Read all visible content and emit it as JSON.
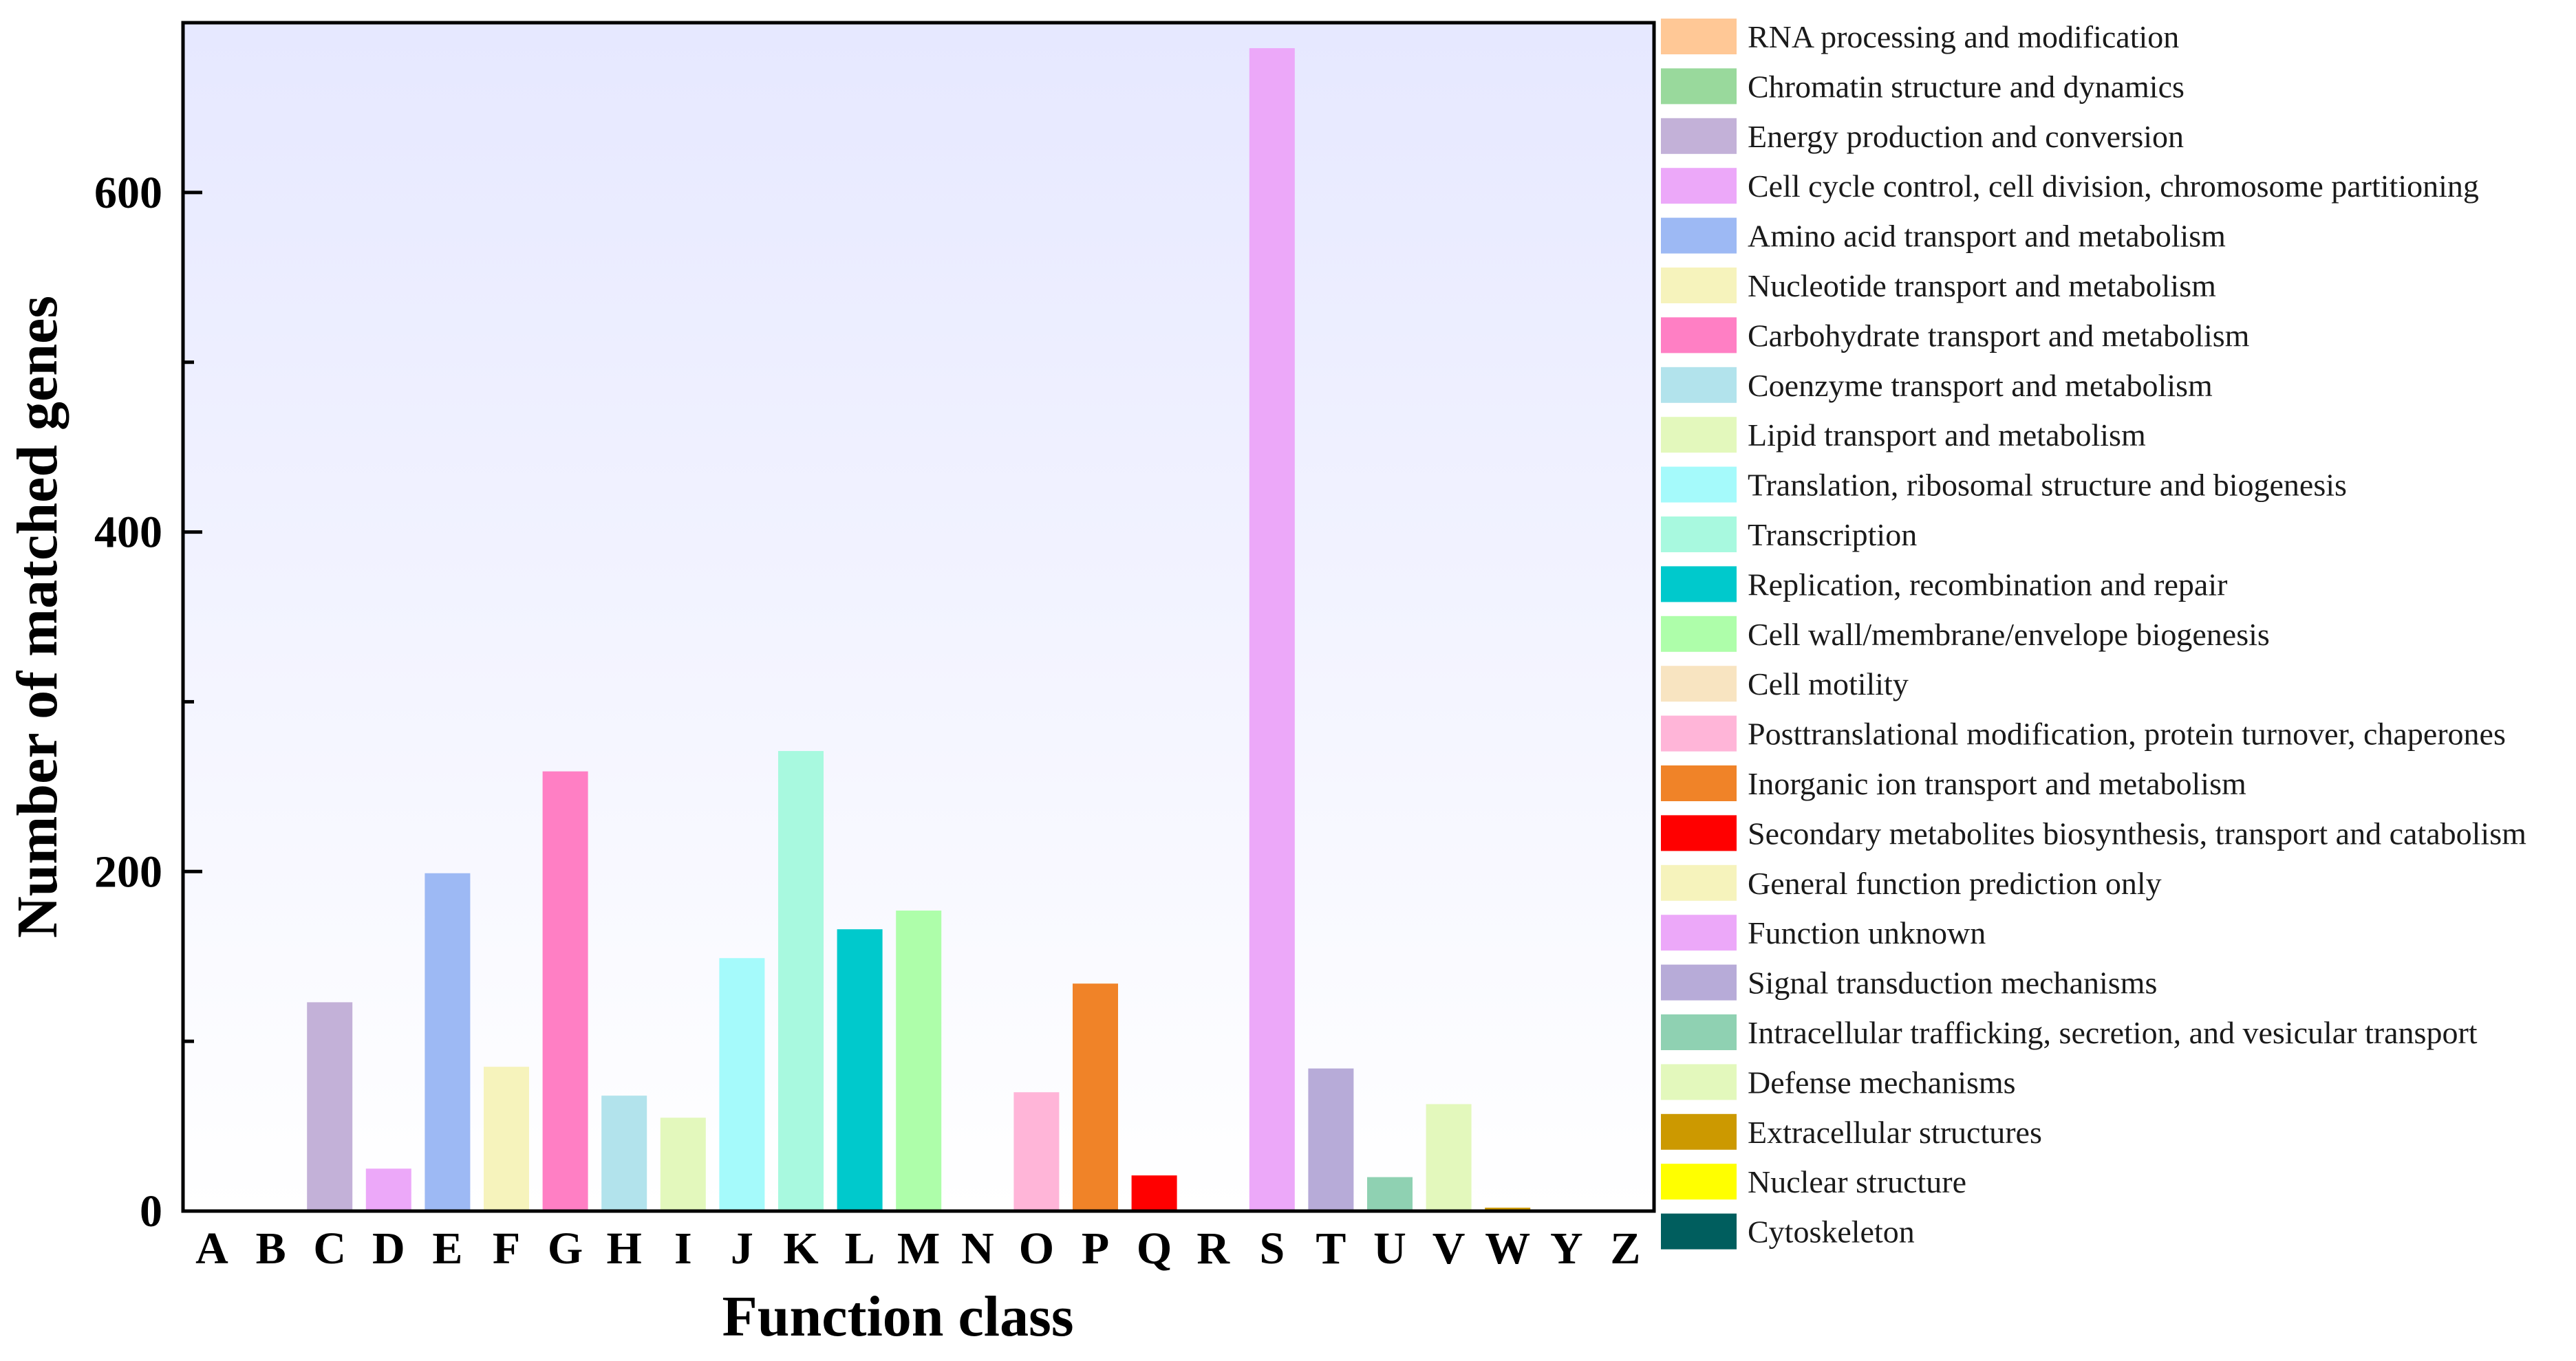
{
  "chart_data": {
    "type": "bar",
    "title": "",
    "xlabel": "Function class",
    "ylabel": "Number of matched genes",
    "ylim": [
      0,
      700
    ],
    "yticks": [
      0,
      200,
      400,
      600
    ],
    "grid": false,
    "legend_position": "right",
    "background": "gradient lavender-to-white",
    "categories": [
      "A",
      "B",
      "C",
      "D",
      "E",
      "F",
      "G",
      "H",
      "I",
      "J",
      "K",
      "L",
      "M",
      "N",
      "O",
      "P",
      "Q",
      "R",
      "S",
      "T",
      "U",
      "V",
      "W",
      "Y",
      "Z"
    ],
    "values": [
      0,
      0,
      123,
      25,
      199,
      85,
      259,
      68,
      55,
      149,
      271,
      166,
      177,
      0,
      70,
      134,
      21,
      0,
      685,
      84,
      20,
      63,
      2,
      0,
      0
    ],
    "colors": [
      "#FFC896",
      "#99D99C",
      "#C3B1D8",
      "#ECA8F9",
      "#9DB9F4",
      "#F6F3BC",
      "#FF7FC4",
      "#B2E3EC",
      "#E3F8BC",
      "#A5FAFB",
      "#A8F9DF",
      "#00C9CC",
      "#AEFEAA",
      "#F8E4C1",
      "#FFB5D8",
      "#F08328",
      "#FF0000",
      "#F6F3BC",
      "#ECA8F9",
      "#B7ABD8",
      "#8FD1B2",
      "#E3F8BC",
      "#CC9900",
      "#FFFF00",
      "#005E5E"
    ],
    "legend": [
      {
        "label": "RNA processing and modification",
        "color": "#FFC896"
      },
      {
        "label": "Chromatin structure and dynamics",
        "color": "#99D99C"
      },
      {
        "label": "Energy production and conversion",
        "color": "#C3B1D8"
      },
      {
        "label": "Cell cycle control, cell division, chromosome partitioning",
        "color": "#ECA8F9"
      },
      {
        "label": "Amino acid transport and metabolism",
        "color": "#9DB9F4"
      },
      {
        "label": "Nucleotide transport and metabolism",
        "color": "#F6F3BC"
      },
      {
        "label": "Carbohydrate transport and metabolism",
        "color": "#FF7FC4"
      },
      {
        "label": "Coenzyme transport and metabolism",
        "color": "#B2E3EC"
      },
      {
        "label": "Lipid transport and metabolism",
        "color": "#E3F8BC"
      },
      {
        "label": "Translation, ribosomal structure and biogenesis",
        "color": "#A5FAFB"
      },
      {
        "label": "Transcription",
        "color": "#A8F9DF"
      },
      {
        "label": "Replication, recombination and repair",
        "color": "#00C9CC"
      },
      {
        "label": "Cell wall/membrane/envelope biogenesis",
        "color": "#AEFEAA"
      },
      {
        "label": "Cell motility",
        "color": "#F8E4C1"
      },
      {
        "label": "Posttranslational modification, protein turnover, chaperones",
        "color": "#FFB5D8"
      },
      {
        "label": "Inorganic ion transport and metabolism",
        "color": "#F08328"
      },
      {
        "label": "Secondary metabolites biosynthesis, transport and catabolism",
        "color": "#FF0000"
      },
      {
        "label": "General function prediction only",
        "color": "#F6F3BC"
      },
      {
        "label": "Function unknown",
        "color": "#ECA8F9"
      },
      {
        "label": "Signal transduction mechanisms",
        "color": "#B7ABD8"
      },
      {
        "label": "Intracellular trafficking, secretion, and vesicular transport",
        "color": "#8FD1B2"
      },
      {
        "label": "Defense mechanisms",
        "color": "#E3F8BC"
      },
      {
        "label": "Extracellular structures",
        "color": "#CC9900"
      },
      {
        "label": "Nuclear structure",
        "color": "#FFFF00"
      },
      {
        "label": "Cytoskeleton",
        "color": "#005E5E"
      }
    ]
  }
}
